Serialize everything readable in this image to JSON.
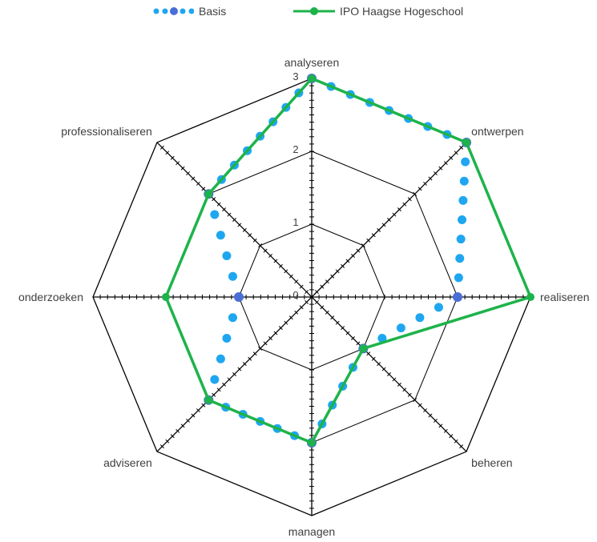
{
  "chart_data": {
    "type": "radar",
    "categories": [
      "analyseren",
      "ontwerpen",
      "realiseren",
      "beheren",
      "managen",
      "adviseren",
      "onderzoeken",
      "professionaliseren"
    ],
    "series": [
      {
        "name": "Basis",
        "values": [
          3,
          3,
          2,
          1,
          2,
          2,
          1,
          2
        ],
        "color": "#1ea7f0",
        "style": "dotted"
      },
      {
        "name": "IPO Haagse Hogeschool",
        "values": [
          3,
          3,
          3,
          1,
          2,
          2,
          2,
          2
        ],
        "color": "#1db34a",
        "style": "solid-markers"
      }
    ],
    "rlim": [
      0,
      3
    ],
    "r_ticks": [
      "0",
      "1",
      "2",
      "3"
    ],
    "grid": true,
    "legend_position": "top"
  }
}
